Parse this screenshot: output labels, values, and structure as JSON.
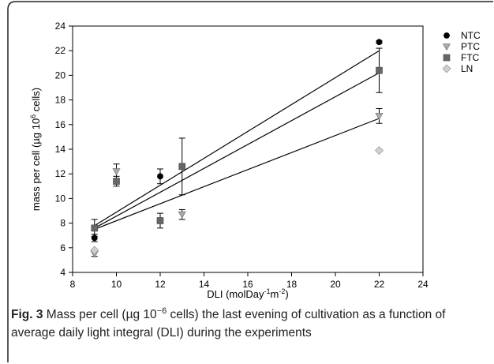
{
  "caption": {
    "label": "Fig. 3",
    "text_part1": "Mass per cell (µg 10",
    "text_sup": "−6",
    "text_part2": " cells) the last evening of cultivation as a function of average daily light integral (DLI) during the experiments"
  },
  "chart_data": {
    "type": "scatter",
    "x_axis": {
      "label_main": "DLI (molDay",
      "label_sup1": "-1",
      "label_mid": "m",
      "label_sup2": "-2",
      "label_end": ")",
      "min": 8,
      "max": 24,
      "ticks": [
        8,
        10,
        12,
        14,
        16,
        18,
        20,
        22,
        24
      ],
      "tick_labels": [
        "8",
        "10",
        "12",
        "14",
        "16",
        "18",
        "20",
        "22",
        "24"
      ]
    },
    "y_axis": {
      "label_main": "mass per cell (µg 10",
      "label_sup": "6",
      "label_end": " cells)",
      "min": 4,
      "max": 24,
      "ticks": [
        4,
        6,
        8,
        10,
        12,
        14,
        16,
        18,
        20,
        22,
        24
      ],
      "tick_labels": [
        "4",
        "6",
        "8",
        "10",
        "12",
        "14",
        "16",
        "18",
        "20",
        "22",
        "24"
      ]
    },
    "legend": [
      {
        "name": "NTC",
        "marker": "circle",
        "color": "#000000"
      },
      {
        "name": "PTC",
        "marker": "triangle-down",
        "color": "#aaaaaa"
      },
      {
        "name": "FTC",
        "marker": "square",
        "color": "#666666"
      },
      {
        "name": "LN",
        "marker": "diamond",
        "color": "#d0d0d0"
      }
    ],
    "series": [
      {
        "name": "NTC",
        "marker": "circle",
        "color": "#000000",
        "points": [
          {
            "x": 9,
            "y": 6.8,
            "err": 0.3
          },
          {
            "x": 12,
            "y": 11.8,
            "err": 0.6
          },
          {
            "x": 22,
            "y": 22.7,
            "err": 0.1
          }
        ]
      },
      {
        "name": "PTC",
        "marker": "triangle-down",
        "color": "#aaaaaa",
        "points": [
          {
            "x": 9,
            "y": 5.5,
            "err": 0.2
          },
          {
            "x": 10,
            "y": 12.2,
            "err": 0.6
          },
          {
            "x": 13,
            "y": 8.7,
            "err": 0.4
          },
          {
            "x": 22,
            "y": 16.7,
            "err": 0.6
          }
        ]
      },
      {
        "name": "FTC",
        "marker": "square",
        "color": "#666666",
        "points": [
          {
            "x": 9,
            "y": 7.6,
            "err": 0.7
          },
          {
            "x": 10,
            "y": 11.4,
            "err": 0.4
          },
          {
            "x": 12,
            "y": 8.2,
            "err": 0.6
          },
          {
            "x": 13,
            "y": 12.6,
            "err": 2.3
          },
          {
            "x": 22,
            "y": 20.4,
            "err": 1.8
          }
        ]
      },
      {
        "name": "LN",
        "marker": "diamond",
        "color": "#d0d0d0",
        "points": [
          {
            "x": 9,
            "y": 5.8,
            "err": 0
          },
          {
            "x": 22,
            "y": 13.9,
            "err": 0
          }
        ]
      }
    ],
    "regression_lines": [
      {
        "x1": 9,
        "y1": 7.8,
        "x2": 22,
        "y2": 22.0
      },
      {
        "x1": 9,
        "y1": 7.6,
        "x2": 22,
        "y2": 20.2
      },
      {
        "x1": 9,
        "y1": 7.5,
        "x2": 22,
        "y2": 16.5
      }
    ]
  }
}
